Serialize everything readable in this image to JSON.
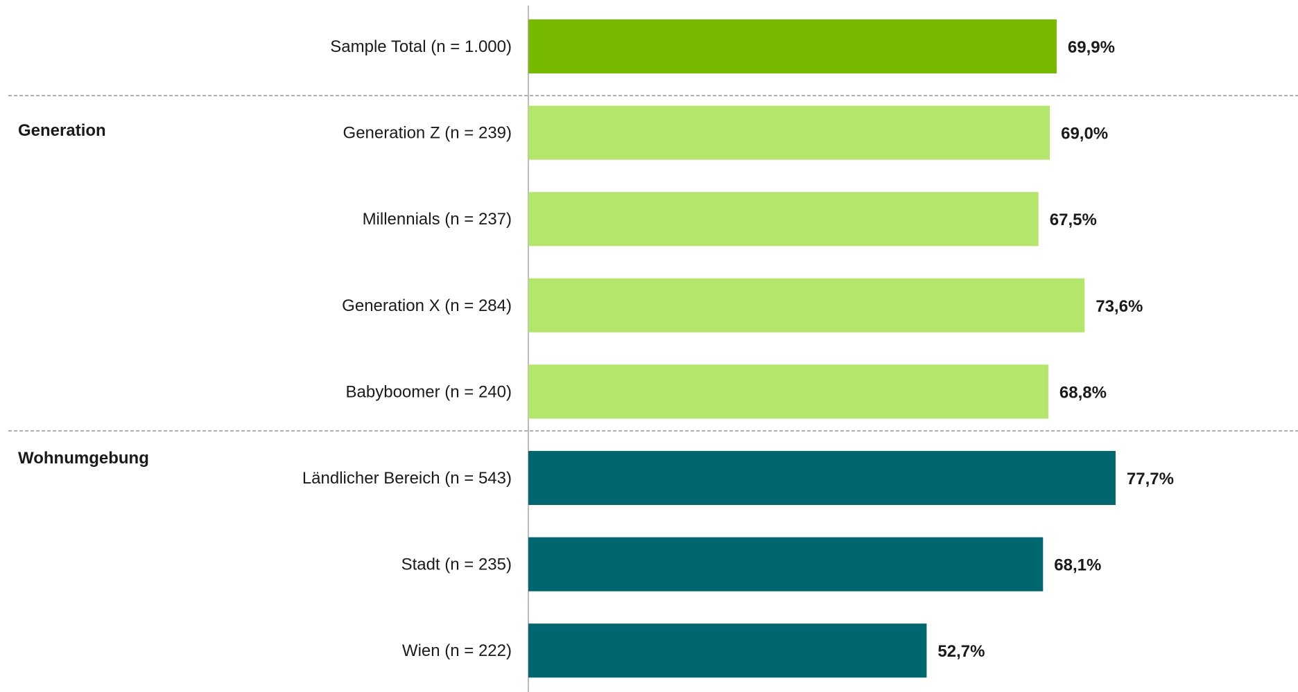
{
  "chart_data": {
    "type": "bar",
    "orientation": "horizontal",
    "xlim": [
      0,
      100
    ],
    "grid": false,
    "legend": "none",
    "colors": {
      "total": "#76B900",
      "generation": "#B3E66A",
      "wohnumgebung": "#00666F",
      "separator": "#7f7f7f",
      "axis": "#a6a6a6"
    },
    "groups": [
      {
        "key": "total",
        "label": ""
      },
      {
        "key": "generation",
        "label": "Generation"
      },
      {
        "key": "wohnumgebung",
        "label": "Wohnumgebung"
      }
    ],
    "categories": [
      "Sample Total (n = 1.000)",
      "Generation Z (n = 239)",
      "Millennials (n = 237)",
      "Generation X (n = 284)",
      "Babyboomer (n = 240)",
      "Ländlicher Bereich (n = 543)",
      "Stadt (n = 235)",
      "Wien (n = 222)"
    ],
    "category_groups": [
      "total",
      "generation",
      "generation",
      "generation",
      "generation",
      "wohnumgebung",
      "wohnumgebung",
      "wohnumgebung"
    ],
    "values": [
      69.9,
      69.0,
      67.5,
      73.6,
      68.8,
      77.7,
      68.1,
      52.7
    ],
    "value_labels": [
      "69,9%",
      "69,0%",
      "67,5%",
      "73,6%",
      "68,8%",
      "77,7%",
      "68,1%",
      "52,7%"
    ]
  }
}
